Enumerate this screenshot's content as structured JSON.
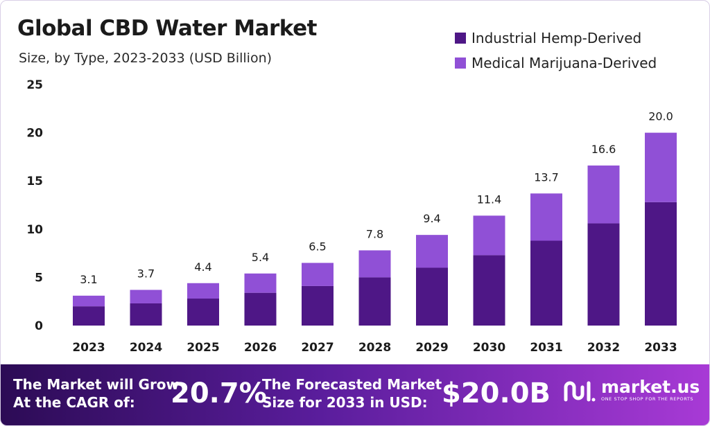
{
  "header": {
    "title": "Global CBD Water Market",
    "subtitle": "Size, by Type, 2023-2033 (USD Billion)"
  },
  "colors": {
    "industrial": "#4e1786",
    "medical": "#9050d6",
    "axis_text": "#1b1b1b"
  },
  "chart_data": {
    "type": "bar",
    "stacked": true,
    "categories": [
      "2023",
      "2024",
      "2025",
      "2026",
      "2027",
      "2028",
      "2029",
      "2030",
      "2031",
      "2032",
      "2033"
    ],
    "series": [
      {
        "name": "Industrial Hemp-Derived",
        "values": [
          2.0,
          2.3,
          2.8,
          3.4,
          4.1,
          5.0,
          6.0,
          7.3,
          8.8,
          10.6,
          12.8
        ]
      },
      {
        "name": "Medical Marijuana-Derived",
        "values": [
          1.1,
          1.4,
          1.6,
          2.0,
          2.4,
          2.8,
          3.4,
          4.1,
          4.9,
          6.0,
          7.2
        ]
      }
    ],
    "totals": [
      "3.1",
      "3.7",
      "4.4",
      "5.4",
      "6.5",
      "7.8",
      "9.4",
      "11.4",
      "13.7",
      "16.6",
      "20.0"
    ],
    "ylim": [
      0,
      25
    ],
    "yticks": [
      "0",
      "5",
      "10",
      "15",
      "20",
      "25"
    ],
    "grid": false,
    "legend_position": "top-right",
    "xlabel": "",
    "ylabel": ""
  },
  "banner": {
    "cagr_text_line1": "The Market will Grow",
    "cagr_text_line2": "At the CAGR of:",
    "cagr_value": "20.7%",
    "forecast_text_line1": "The Forecasted Market",
    "forecast_text_line2": "Size for 2033 in USD:",
    "forecast_value": "$20.0B",
    "logo_name": "market.us",
    "logo_tagline": "ONE STOP SHOP FOR THE REPORTS"
  }
}
